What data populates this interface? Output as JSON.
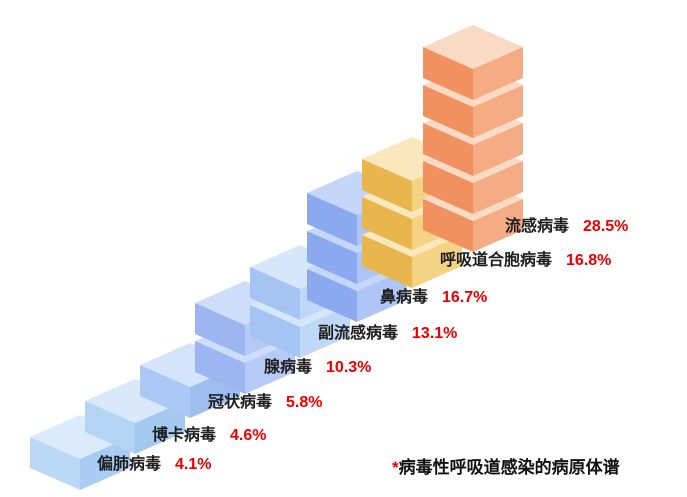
{
  "chart_data": {
    "type": "bar",
    "variant": "isometric-stacked-cubes",
    "title": "",
    "categories": [
      "偏肺病毒",
      "博卡病毒",
      "冠状病毒",
      "腺病毒",
      "副流感病毒",
      "鼻病毒",
      "呼吸道合胞病毒",
      "流感病毒"
    ],
    "values": [
      4.1,
      4.6,
      5.8,
      10.3,
      13.1,
      16.7,
      16.8,
      28.5
    ],
    "value_labels": [
      "4.1%",
      "4.6%",
      "5.8%",
      "10.3%",
      "13.1%",
      "16.7%",
      "16.8%",
      "28.5%"
    ],
    "cube_counts": [
      1,
      1,
      1,
      2,
      2,
      3,
      3,
      5
    ],
    "bar_colors": [
      {
        "top": "#DCEBFB",
        "left": "#BBD9F6",
        "right": "#A9CDF2"
      },
      {
        "top": "#D9E9FB",
        "left": "#B4D4F5",
        "right": "#A4C9F1"
      },
      {
        "top": "#D5E4FA",
        "left": "#ACC8F4",
        "right": "#9EBEF0"
      },
      {
        "top": "#CEDDFA",
        "left": "#9DB6F2",
        "right": "#B6CAF7"
      },
      {
        "top": "#D7E7FB",
        "left": "#A5C4F3",
        "right": "#BFD8F8"
      },
      {
        "top": "#C6D6F9",
        "left": "#8BA9EF",
        "right": "#AFC5F6"
      },
      {
        "top": "#FAE8BC",
        "left": "#E9B64D",
        "right": "#F4D484"
      },
      {
        "top": "#F9DAC5",
        "left": "#F0915F",
        "right": "#F5AC84"
      }
    ],
    "label_color": "#1E1E1E",
    "value_color": "#E80000",
    "legend": "none",
    "grid": "off",
    "layout_hint": "staircase of isometric cube stacks rising left-to-right; category and value labels to the lower-right of each stack",
    "footnote": {
      "marker": "*",
      "marker_color": "#E80000",
      "text": "病毒性呼吸道感染的病原体谱"
    }
  }
}
